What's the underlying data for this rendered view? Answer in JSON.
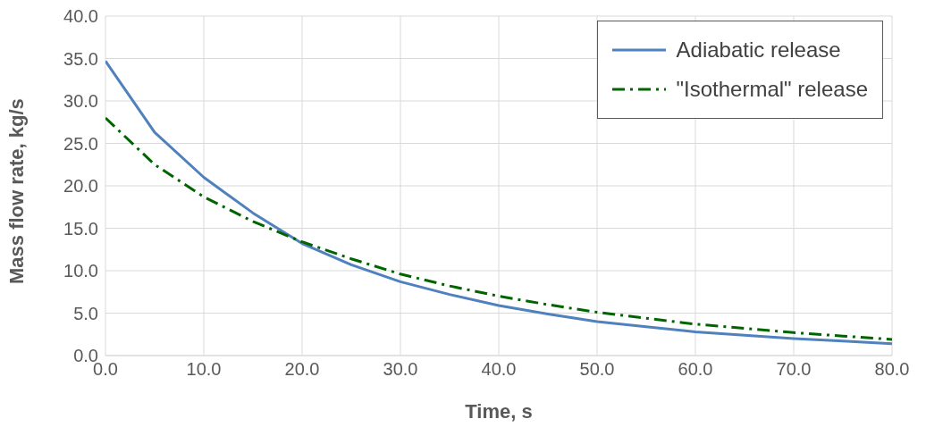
{
  "chart_data": {
    "type": "line",
    "xlabel": "Time, s",
    "ylabel": "Mass flow rate, kg/s",
    "x": [
      0,
      5,
      10,
      15,
      20,
      25,
      30,
      35,
      40,
      45,
      50,
      55,
      60,
      65,
      70,
      75,
      80
    ],
    "series": [
      {
        "name": "Adiabatic release",
        "color": "#4f81bd",
        "line_style": "solid",
        "values": [
          34.7,
          26.3,
          21.0,
          16.8,
          13.2,
          10.7,
          8.7,
          7.2,
          5.9,
          4.9,
          4.0,
          3.4,
          2.8,
          2.4,
          2.0,
          1.7,
          1.4
        ]
      },
      {
        "name": "\"Isothermal\" release",
        "color": "#006400",
        "line_style": "dashed",
        "values": [
          28.0,
          22.5,
          18.7,
          15.8,
          13.4,
          11.4,
          9.6,
          8.2,
          7.0,
          6.0,
          5.1,
          4.4,
          3.7,
          3.2,
          2.7,
          2.3,
          1.9
        ]
      }
    ],
    "xlim": [
      0,
      80
    ],
    "xticks": [
      {
        "value": 0,
        "label": "0.0"
      },
      {
        "value": 10,
        "label": "10.0"
      },
      {
        "value": 20,
        "label": "20.0"
      },
      {
        "value": 30,
        "label": "30.0"
      },
      {
        "value": 40,
        "label": "40.0"
      },
      {
        "value": 50,
        "label": "50.0"
      },
      {
        "value": 60,
        "label": "60.0"
      },
      {
        "value": 70,
        "label": "70.0"
      },
      {
        "value": 80,
        "label": "80.0"
      }
    ],
    "ylim": [
      0,
      40
    ],
    "yticks": [
      {
        "value": 0,
        "label": "0.0"
      },
      {
        "value": 5,
        "label": "5.0"
      },
      {
        "value": 10,
        "label": "10.0"
      },
      {
        "value": 15,
        "label": "15.0"
      },
      {
        "value": 20,
        "label": "20.0"
      },
      {
        "value": 25,
        "label": "25.0"
      },
      {
        "value": 30,
        "label": "30.0"
      },
      {
        "value": 35,
        "label": "35.0"
      },
      {
        "value": 40,
        "label": "40.0"
      }
    ],
    "grid": true,
    "legend": "top right",
    "marker": "none"
  }
}
